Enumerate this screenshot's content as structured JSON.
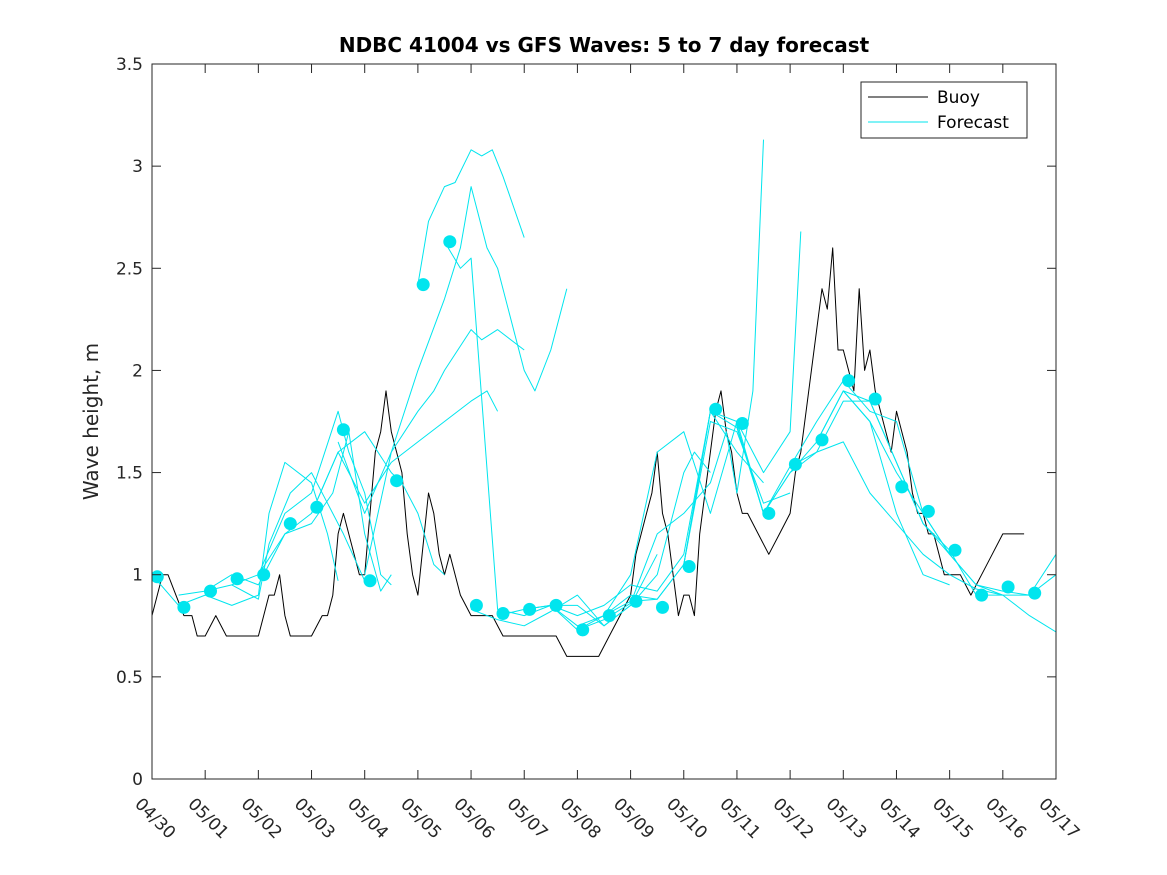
{
  "chart_data": {
    "type": "line",
    "title": "NDBC 41004 vs GFS Waves: 5 to 7 day forecast",
    "xlabel": "",
    "ylabel": "Wave height, m",
    "xlim": [
      0,
      17
    ],
    "ylim": [
      0,
      3.5
    ],
    "x_units": "days since 04/30 00:00",
    "x_tick_values": [
      0,
      1,
      2,
      3,
      4,
      5,
      6,
      7,
      8,
      9,
      10,
      11,
      12,
      13,
      14,
      15,
      16,
      17
    ],
    "x_tick_labels": [
      "04/30",
      "05/01",
      "05/02",
      "05/03",
      "05/04",
      "05/05",
      "05/06",
      "05/07",
      "05/08",
      "05/09",
      "05/10",
      "05/11",
      "05/12",
      "05/13",
      "05/14",
      "05/15",
      "05/16",
      "05/17"
    ],
    "y_tick_values": [
      0,
      0.5,
      1,
      1.5,
      2,
      2.5,
      3,
      3.5
    ],
    "y_tick_labels": [
      "0",
      "0.5",
      "1",
      "1.5",
      "2",
      "2.5",
      "3",
      "3.5"
    ],
    "grid": false,
    "legend": {
      "placement": "top-right",
      "entries": [
        {
          "label": "Buoy",
          "color": "#000000"
        },
        {
          "label": "Forecast",
          "color": "#00e5ee"
        }
      ]
    },
    "colors": {
      "buoy": "#000000",
      "forecast": "#00e5ee",
      "axes": "#262626"
    },
    "series": [
      {
        "name": "Buoy",
        "kind": "line",
        "x": [
          0,
          0.1,
          0.2,
          0.3,
          0.45,
          0.6,
          0.75,
          0.85,
          1.0,
          1.2,
          1.4,
          1.6,
          1.8,
          2.0,
          2.1,
          2.2,
          2.3,
          2.4,
          2.5,
          2.6,
          2.7,
          3.0,
          3.2,
          3.3,
          3.4,
          3.5,
          3.6,
          3.8,
          3.9,
          4.0,
          4.1,
          4.2,
          4.3,
          4.4,
          4.45,
          4.5,
          4.6,
          4.7,
          4.8,
          4.9,
          5.0,
          5.2,
          5.3,
          5.4,
          5.5,
          5.6,
          5.8,
          6.0,
          6.2,
          6.4,
          6.6,
          6.8,
          7.0,
          7.2,
          7.4,
          7.6,
          7.8,
          8.0,
          8.2,
          8.4,
          8.6,
          8.8,
          9.0,
          9.1,
          9.2,
          9.3,
          9.4,
          9.5,
          9.6,
          9.7,
          9.8,
          9.9,
          10.0,
          10.1,
          10.2,
          10.3,
          10.4,
          10.5,
          10.6,
          10.7,
          10.8,
          10.9,
          11.0,
          11.1,
          11.2,
          11.4,
          11.6,
          11.8,
          12.0,
          12.1,
          12.2,
          12.3,
          12.4,
          12.5,
          12.6,
          12.7,
          12.8,
          12.9,
          13.0,
          13.1,
          13.2,
          13.3,
          13.4,
          13.5,
          13.6,
          13.7,
          13.8,
          13.9,
          14.0,
          14.1,
          14.2,
          14.3,
          14.4,
          14.5,
          14.6,
          14.7,
          14.8,
          14.9,
          15.0,
          15.2,
          15.4,
          15.6,
          15.8,
          16.0,
          16.2,
          16.4
        ],
        "y": [
          0.8,
          0.9,
          1.0,
          1.0,
          0.9,
          0.8,
          0.8,
          0.7,
          0.7,
          0.8,
          0.7,
          0.7,
          0.7,
          0.7,
          0.8,
          0.9,
          0.9,
          1.0,
          0.8,
          0.7,
          0.7,
          0.7,
          0.8,
          0.8,
          0.9,
          1.2,
          1.3,
          1.1,
          1.0,
          1.0,
          1.3,
          1.6,
          1.7,
          1.9,
          1.8,
          1.7,
          1.6,
          1.5,
          1.2,
          1.0,
          0.9,
          1.4,
          1.3,
          1.1,
          1.0,
          1.1,
          0.9,
          0.8,
          0.8,
          0.8,
          0.7,
          0.7,
          0.7,
          0.7,
          0.7,
          0.7,
          0.6,
          0.6,
          0.6,
          0.6,
          0.7,
          0.8,
          0.9,
          1.1,
          1.2,
          1.3,
          1.4,
          1.6,
          1.3,
          1.2,
          1.0,
          0.8,
          0.9,
          0.9,
          0.8,
          1.2,
          1.4,
          1.6,
          1.8,
          1.9,
          1.7,
          1.6,
          1.4,
          1.3,
          1.3,
          1.2,
          1.1,
          1.2,
          1.3,
          1.5,
          1.6,
          1.8,
          2.0,
          2.2,
          2.4,
          2.3,
          2.6,
          2.1,
          2.1,
          2.0,
          1.9,
          2.4,
          2.0,
          2.1,
          1.9,
          1.8,
          1.7,
          1.6,
          1.8,
          1.7,
          1.6,
          1.4,
          1.3,
          1.3,
          1.2,
          1.2,
          1.1,
          1.0,
          1.0,
          1.0,
          0.9,
          1.0,
          1.1,
          1.2,
          1.2,
          1.2
        ]
      },
      {
        "name": "Forecast",
        "kind": "line",
        "x": [
          0,
          0.5,
          1.0,
          1.5,
          2.0,
          2.2,
          2.5,
          3.0,
          3.3,
          3.5
        ],
        "y": [
          1.0,
          0.85,
          0.9,
          0.85,
          0.9,
          1.3,
          1.55,
          1.45,
          1.2,
          0.97
        ]
      },
      {
        "name": "Forecast",
        "kind": "line",
        "x": [
          0.5,
          1.0,
          1.5,
          2.0,
          2.2,
          2.6,
          3.0,
          3.3,
          3.6,
          4.0
        ],
        "y": [
          0.9,
          0.92,
          0.95,
          0.88,
          1.15,
          1.4,
          1.5,
          1.35,
          1.2,
          0.97
        ]
      },
      {
        "name": "Forecast",
        "kind": "line",
        "x": [
          1.0,
          1.5,
          2.0,
          2.5,
          3.0,
          3.4,
          3.7,
          4.0,
          4.3,
          4.5
        ],
        "y": [
          0.92,
          1.0,
          0.95,
          1.2,
          1.25,
          1.4,
          1.7,
          1.2,
          0.92,
          1.0
        ]
      },
      {
        "name": "Forecast",
        "kind": "line",
        "x": [
          1.5,
          2.0,
          2.5,
          3.0,
          3.5,
          3.7,
          4.0,
          4.3,
          4.5
        ],
        "y": [
          0.95,
          1.0,
          1.3,
          1.4,
          1.8,
          1.6,
          1.4,
          1.0,
          0.95
        ]
      },
      {
        "name": "Forecast",
        "kind": "line",
        "x": [
          2.0,
          2.5,
          3.0,
          3.5,
          4.0,
          4.5,
          4.7,
          5.0,
          5.3,
          5.5
        ],
        "y": [
          1.0,
          1.2,
          1.3,
          1.6,
          1.7,
          1.5,
          1.45,
          1.3,
          1.05,
          1.0
        ]
      },
      {
        "name": "Forecast",
        "kind": "line",
        "x": [
          3.0,
          3.5,
          4.0,
          4.5,
          5.0,
          5.5,
          6.0,
          6.3,
          6.5
        ],
        "y": [
          1.3,
          1.6,
          1.35,
          1.55,
          1.65,
          1.75,
          1.85,
          1.9,
          1.8
        ]
      },
      {
        "name": "Forecast",
        "kind": "line",
        "x": [
          3.5,
          4.0,
          4.5,
          5.0,
          5.3,
          5.5,
          6.0,
          6.2,
          6.5,
          7.0
        ],
        "y": [
          1.65,
          1.3,
          1.6,
          1.8,
          1.9,
          2.0,
          2.2,
          2.15,
          2.2,
          2.1
        ]
      },
      {
        "name": "Forecast",
        "kind": "line",
        "x": [
          4.0,
          4.5,
          5.0,
          5.5,
          5.8,
          6.0,
          6.3,
          6.5,
          7.0,
          7.2,
          7.5,
          7.8
        ],
        "y": [
          1.0,
          1.6,
          2.0,
          2.35,
          2.6,
          2.9,
          2.6,
          2.5,
          2.0,
          1.9,
          2.1,
          2.4
        ]
      },
      {
        "name": "Forecast",
        "kind": "line",
        "x": [
          5.0,
          5.2,
          5.5,
          5.7,
          6.0,
          6.2,
          6.4,
          6.6,
          6.8,
          7.0
        ],
        "y": [
          2.42,
          2.73,
          2.9,
          2.92,
          3.08,
          3.05,
          3.08,
          2.95,
          2.8,
          2.65
        ]
      },
      {
        "name": "Forecast",
        "kind": "line",
        "x": [
          5.5,
          5.8,
          6.0,
          6.5,
          7.0,
          7.5,
          8.0,
          8.5,
          9.0,
          9.5
        ],
        "y": [
          2.63,
          2.5,
          2.55,
          0.83,
          0.8,
          0.85,
          0.85,
          0.75,
          0.85,
          1.1
        ]
      },
      {
        "name": "Forecast",
        "kind": "line",
        "x": [
          6.0,
          6.5,
          7.0,
          7.5,
          8.0,
          8.5,
          9.0,
          9.5,
          10.0,
          10.2,
          10.5
        ],
        "y": [
          0.83,
          0.78,
          0.75,
          0.82,
          0.9,
          0.75,
          0.85,
          1.0,
          1.5,
          1.6,
          1.5
        ]
      },
      {
        "name": "Forecast",
        "kind": "line",
        "x": [
          6.5,
          7.0,
          7.5,
          8.0,
          8.5,
          9.0,
          9.5,
          10.0,
          10.5,
          11.0,
          11.5
        ],
        "y": [
          0.8,
          0.83,
          0.85,
          0.8,
          0.85,
          0.95,
          0.92,
          1.1,
          1.8,
          1.6,
          1.45
        ]
      },
      {
        "name": "Forecast",
        "kind": "line",
        "x": [
          7.0,
          7.5,
          8.0,
          8.5,
          9.0,
          9.5,
          10.0,
          10.5,
          11.0,
          11.5,
          12.0
        ],
        "y": [
          0.83,
          0.85,
          0.75,
          0.8,
          0.87,
          0.88,
          1.05,
          1.75,
          1.7,
          1.35,
          1.4
        ]
      },
      {
        "name": "Forecast",
        "kind": "line",
        "x": [
          7.5,
          8.0,
          8.5,
          9.0,
          9.5,
          10.0,
          10.5,
          10.8,
          11.0,
          11.3,
          11.5
        ],
        "y": [
          0.85,
          0.73,
          0.78,
          0.86,
          1.2,
          1.3,
          1.45,
          1.7,
          1.4,
          1.9,
          3.13
        ]
      },
      {
        "name": "Forecast",
        "kind": "line",
        "x": [
          8.0,
          8.5,
          9.0,
          9.5,
          10.0,
          10.5,
          11.0,
          11.5,
          12.0,
          12.2
        ],
        "y": [
          0.73,
          0.8,
          1.0,
          1.6,
          1.7,
          1.3,
          1.75,
          1.5,
          1.7,
          2.68
        ]
      },
      {
        "name": "Forecast",
        "kind": "line",
        "x": [
          8.5,
          9.0,
          9.5,
          10.0,
          10.5,
          11.0,
          11.5,
          12.0,
          12.5,
          13.0,
          13.5,
          14.0,
          14.5,
          15.0
        ],
        "y": [
          0.8,
          0.9,
          0.88,
          1.05,
          1.8,
          1.72,
          1.3,
          1.5,
          1.65,
          1.9,
          1.85,
          1.55,
          1.25,
          1.1
        ]
      },
      {
        "name": "Forecast",
        "kind": "line",
        "x": [
          10.0,
          10.5,
          11.0,
          11.5,
          12.0,
          12.5,
          13.0,
          13.5,
          14.0,
          14.5,
          15.0,
          15.5,
          16.0
        ],
        "y": [
          1.05,
          1.8,
          1.75,
          1.3,
          1.53,
          1.75,
          1.95,
          1.8,
          1.75,
          1.3,
          1.1,
          0.95,
          0.9
        ]
      },
      {
        "name": "Forecast",
        "kind": "line",
        "x": [
          11.0,
          11.5,
          12.0,
          12.5,
          13.0,
          13.5,
          14.0,
          14.5,
          15.0,
          15.5,
          16.0,
          16.5,
          17.0
        ],
        "y": [
          1.73,
          1.3,
          1.5,
          1.6,
          1.65,
          1.4,
          1.25,
          1.1,
          1.0,
          0.93,
          0.9,
          0.8,
          0.72
        ]
      },
      {
        "name": "Forecast",
        "kind": "line",
        "x": [
          12.0,
          12.5,
          13.0,
          13.5,
          14.0,
          14.5,
          15.0,
          15.5,
          16.0,
          16.5,
          17.0
        ],
        "y": [
          1.53,
          1.6,
          1.85,
          1.85,
          1.55,
          1.25,
          1.12,
          0.9,
          0.9,
          0.9,
          1.1
        ]
      },
      {
        "name": "Forecast",
        "kind": "line",
        "x": [
          12.5,
          13.0,
          13.5,
          14.0,
          14.5,
          15.0
        ],
        "y": [
          1.65,
          1.9,
          1.75,
          1.3,
          1.0,
          0.95
        ]
      },
      {
        "name": "Forecast",
        "kind": "line",
        "x": [
          13.0,
          13.5,
          14.0,
          14.5,
          15.0,
          15.5,
          16.0,
          16.5,
          17.0
        ],
        "y": [
          1.9,
          1.75,
          1.5,
          1.3,
          1.1,
          0.95,
          0.92,
          0.9,
          1.0
        ]
      },
      {
        "name": "Forecast",
        "kind": "markers",
        "x": [
          0.1,
          0.6,
          1.1,
          1.6,
          2.1,
          2.6,
          3.1,
          3.6,
          4.1,
          4.6,
          5.1,
          5.6,
          6.1,
          6.6,
          7.1,
          7.6,
          8.1,
          8.6,
          9.1,
          9.6,
          10.1,
          10.6,
          11.1,
          11.6,
          12.1,
          12.6,
          13.1,
          13.6,
          14.1,
          14.6,
          15.1,
          15.6,
          16.1,
          16.6
        ],
        "y": [
          0.99,
          0.84,
          0.92,
          0.98,
          1.0,
          1.25,
          1.33,
          1.71,
          0.97,
          1.46,
          2.42,
          2.63,
          0.85,
          0.81,
          0.83,
          0.85,
          0.73,
          0.8,
          0.87,
          0.84,
          1.04,
          1.81,
          1.74,
          1.3,
          1.54,
          1.66,
          1.95,
          1.86,
          1.43,
          1.31,
          1.12,
          0.9,
          0.94,
          0.91
        ]
      }
    ]
  }
}
